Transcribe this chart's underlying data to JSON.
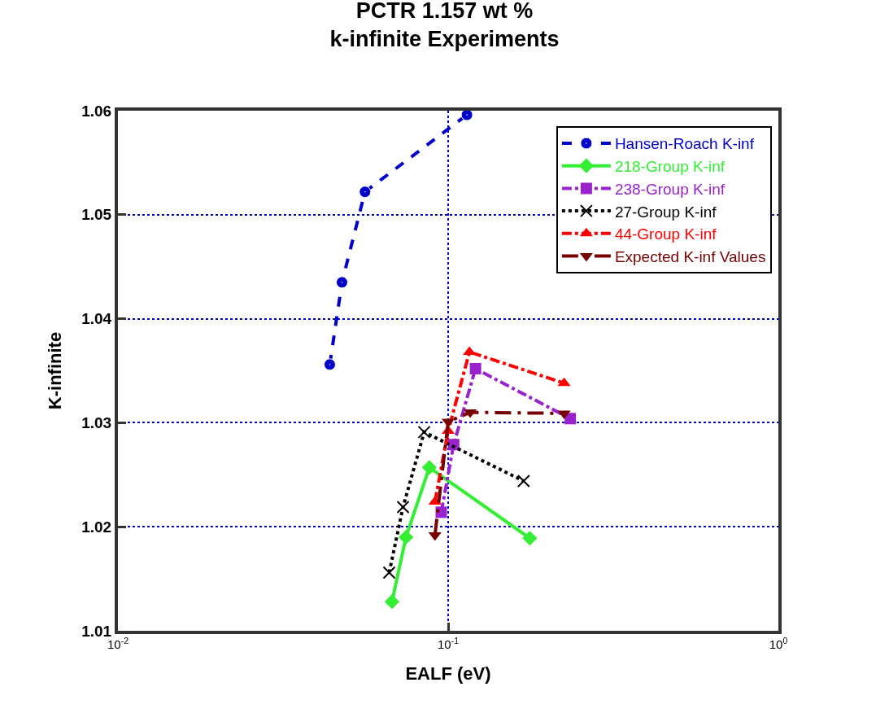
{
  "chart_data": {
    "type": "line",
    "title": "PCTR 1.157 wt %\nk-infinite Experiments",
    "xlabel": "EALF (eV)",
    "ylabel": "K-infinite",
    "log": "x",
    "grid": true,
    "legend": "top right",
    "xlim": [
      0.01,
      1
    ],
    "xticks": [
      {
        "value": 0.01,
        "label": "10$^{-2}$"
      },
      {
        "value": 0.1,
        "label": "10$^{-1}$"
      },
      {
        "value": 1,
        "label": "10$^{0}$"
      }
    ],
    "ylim": [
      1.01,
      1.06
    ],
    "yticks": [
      1.01,
      1.02,
      1.03,
      1.04,
      1.05,
      1.06
    ],
    "series": [
      {
        "name": "Hansen-Roach K-inf",
        "color": "#0000cc",
        "marker": "circle",
        "line_style": "dashed",
        "x": [
          0.0438,
          0.0477,
          0.056,
          0.114
        ],
        "values": [
          1.0356,
          1.0435,
          1.0522,
          1.0596
        ]
      },
      {
        "name": "218-Group K-inf",
        "color": "#33ee33",
        "marker": "diamond",
        "line_style": "solid",
        "x": [
          0.0676,
          0.0745,
          0.0877,
          0.1767
        ],
        "values": [
          1.0128,
          1.019,
          1.0257,
          1.0189
        ]
      },
      {
        "name": "238-Group K-inf",
        "color": "#9922cc",
        "marker": "square",
        "line_style": "dashdot",
        "x": [
          0.0953,
          0.1039,
          0.121,
          0.2343
        ],
        "values": [
          1.0214,
          1.0279,
          1.0352,
          1.0304
        ]
      },
      {
        "name": "27-Group K-inf",
        "color": "#000000",
        "marker": "cross",
        "line_style": "dotted",
        "x": [
          0.0663,
          0.073,
          0.0846,
          0.1693
        ],
        "values": [
          1.0156,
          1.0219,
          1.0291,
          1.0244
        ]
      },
      {
        "name": "44-Group K-inf",
        "color": "#ff0000",
        "marker": "triangle",
        "line_style": "dashdot",
        "x": [
          0.0912,
          0.1,
          0.116,
          0.2245
        ],
        "values": [
          1.0224,
          1.0292,
          1.0368,
          1.0338
        ]
      },
      {
        "name": "Expected K-inf Values",
        "color": "#770000",
        "marker": "triangle-down",
        "line_style": "longdashdot",
        "x": [
          0.0912,
          0.1,
          0.1166,
          0.2245
        ],
        "values": [
          1.0192,
          1.0301,
          1.031,
          1.0309
        ]
      }
    ]
  }
}
